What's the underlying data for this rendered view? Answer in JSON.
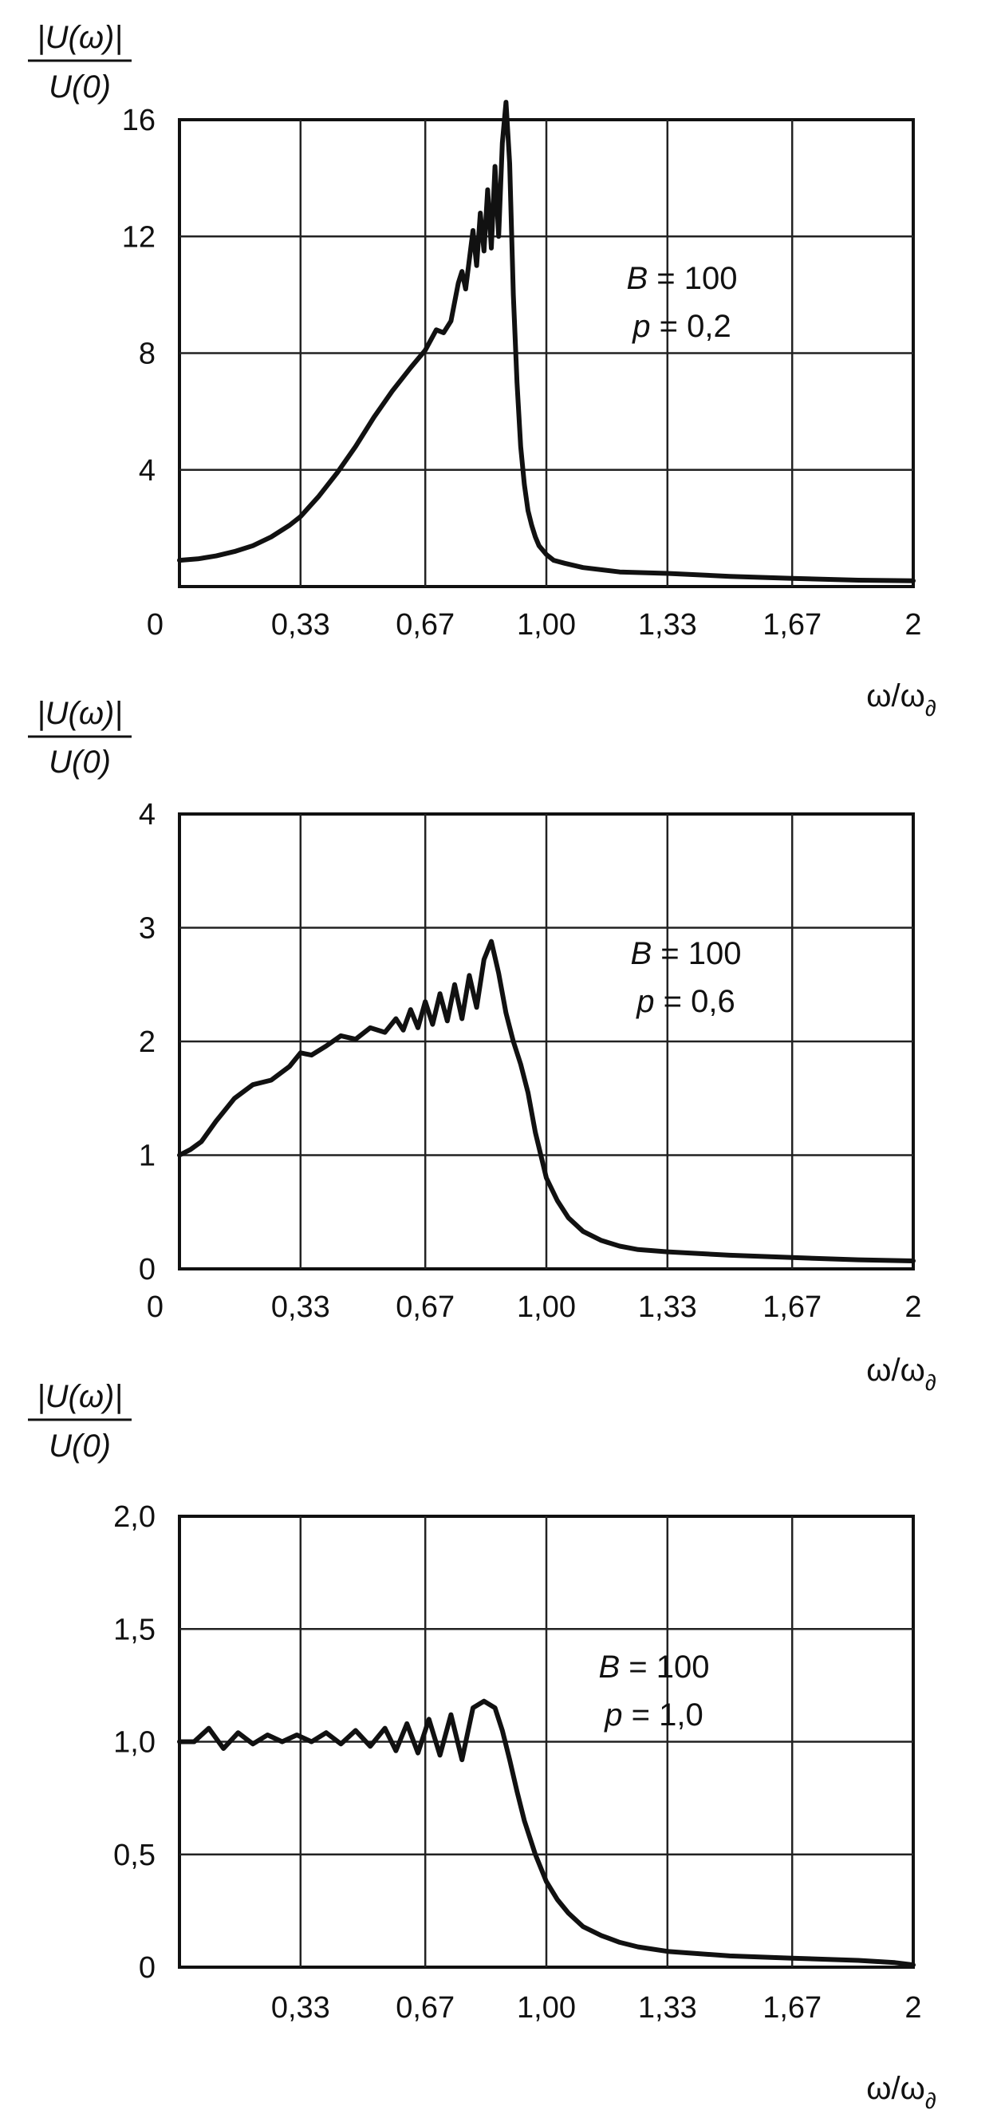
{
  "chart_data": [
    {
      "type": "line",
      "ylabel_num": "|U(ω)|",
      "ylabel_den": "U(0)",
      "xlabel": "ω/ω",
      "xlabel_sub": "∂",
      "xlim": [
        0,
        2
      ],
      "ylim": [
        0,
        16
      ],
      "x_ticks": [
        0,
        0.33,
        0.67,
        1.0,
        1.33,
        1.67,
        2
      ],
      "x_tick_labels": [
        "0",
        "0,33",
        "0,67",
        "1,00",
        "1,33",
        "1,67",
        "2"
      ],
      "y_ticks": [
        4,
        8,
        12,
        16
      ],
      "y_tick_labels": [
        "4",
        "8",
        "12",
        "16"
      ],
      "grid": true,
      "annotation": {
        "b_label": "B",
        "b_value": " = 100",
        "p_label": "p",
        "p_value": " = 0,2"
      },
      "series": [
        {
          "x": [
            0,
            0.05,
            0.1,
            0.15,
            0.2,
            0.25,
            0.3,
            0.33,
            0.38,
            0.43,
            0.48,
            0.53,
            0.58,
            0.63,
            0.67,
            0.7,
            0.72,
            0.74,
            0.76,
            0.77,
            0.78,
            0.79,
            0.8,
            0.81,
            0.82,
            0.83,
            0.84,
            0.85,
            0.86,
            0.87,
            0.88,
            0.89,
            0.9,
            0.91,
            0.92,
            0.93,
            0.94,
            0.95,
            0.96,
            0.97,
            0.98,
            1.0,
            1.02,
            1.05,
            1.1,
            1.2,
            1.33,
            1.5,
            1.67,
            1.85,
            2.0
          ],
          "y": [
            0.9,
            0.95,
            1.05,
            1.2,
            1.4,
            1.7,
            2.1,
            2.4,
            3.1,
            3.9,
            4.8,
            5.8,
            6.7,
            7.5,
            8.1,
            8.8,
            8.7,
            9.1,
            10.4,
            10.8,
            10.2,
            11.2,
            12.2,
            11.0,
            12.8,
            11.5,
            13.6,
            11.6,
            14.4,
            12.0,
            15.2,
            16.6,
            14.5,
            10.0,
            7.0,
            4.8,
            3.5,
            2.6,
            2.1,
            1.7,
            1.4,
            1.1,
            0.9,
            0.8,
            0.65,
            0.5,
            0.45,
            0.35,
            0.28,
            0.22,
            0.2
          ]
        }
      ]
    },
    {
      "type": "line",
      "ylabel_num": "|U(ω)|",
      "ylabel_den": "U(0)",
      "xlabel": "ω/ω",
      "xlabel_sub": "∂",
      "xlim": [
        0,
        2
      ],
      "ylim": [
        0,
        4
      ],
      "x_ticks": [
        0,
        0.33,
        0.67,
        1.0,
        1.33,
        1.67,
        2
      ],
      "x_tick_labels": [
        "0",
        "0,33",
        "0,67",
        "1,00",
        "1,33",
        "1,67",
        "2"
      ],
      "y_ticks": [
        0,
        1,
        2,
        3,
        4
      ],
      "y_tick_labels": [
        "0",
        "1",
        "2",
        "3",
        "4"
      ],
      "grid": true,
      "annotation": {
        "b_label": "B",
        "b_value": " = 100",
        "p_label": "p",
        "p_value": " = 0,6"
      },
      "series": [
        {
          "x": [
            0,
            0.03,
            0.06,
            0.1,
            0.15,
            0.2,
            0.25,
            0.3,
            0.33,
            0.36,
            0.4,
            0.44,
            0.48,
            0.52,
            0.56,
            0.59,
            0.61,
            0.63,
            0.65,
            0.67,
            0.69,
            0.71,
            0.73,
            0.75,
            0.77,
            0.79,
            0.81,
            0.83,
            0.85,
            0.87,
            0.89,
            0.91,
            0.93,
            0.95,
            0.97,
            1.0,
            1.03,
            1.06,
            1.1,
            1.15,
            1.2,
            1.25,
            1.33,
            1.5,
            1.67,
            1.85,
            2.0
          ],
          "y": [
            1.0,
            1.05,
            1.12,
            1.3,
            1.5,
            1.62,
            1.66,
            1.78,
            1.9,
            1.88,
            1.96,
            2.05,
            2.02,
            2.12,
            2.08,
            2.2,
            2.1,
            2.28,
            2.12,
            2.35,
            2.15,
            2.42,
            2.18,
            2.5,
            2.2,
            2.58,
            2.3,
            2.72,
            2.88,
            2.6,
            2.25,
            2.0,
            1.8,
            1.55,
            1.2,
            0.8,
            0.6,
            0.45,
            0.33,
            0.25,
            0.2,
            0.17,
            0.15,
            0.12,
            0.1,
            0.08,
            0.07
          ]
        }
      ]
    },
    {
      "type": "line",
      "ylabel_num": "|U(ω)|",
      "ylabel_den": "U(0)",
      "xlabel": "ω/ω",
      "xlabel_sub": "∂",
      "xlim": [
        0,
        2
      ],
      "ylim": [
        0,
        2
      ],
      "x_ticks": [
        0.33,
        0.67,
        1.0,
        1.33,
        1.67,
        2
      ],
      "x_tick_labels": [
        "0,33",
        "0,67",
        "1,00",
        "1,33",
        "1,67",
        "2"
      ],
      "y_ticks": [
        0,
        0.5,
        1.0,
        1.5,
        2.0
      ],
      "y_tick_labels": [
        "0",
        "0,5",
        "1,0",
        "1,5",
        "2,0"
      ],
      "grid": true,
      "annotation": {
        "b_label": "B",
        "b_value": " = 100",
        "p_label": "p",
        "p_value": " = 1,0"
      },
      "series": [
        {
          "x": [
            0,
            0.04,
            0.08,
            0.12,
            0.16,
            0.2,
            0.24,
            0.28,
            0.32,
            0.36,
            0.4,
            0.44,
            0.48,
            0.52,
            0.56,
            0.59,
            0.62,
            0.65,
            0.68,
            0.71,
            0.74,
            0.77,
            0.8,
            0.83,
            0.86,
            0.88,
            0.9,
            0.92,
            0.94,
            0.97,
            1.0,
            1.03,
            1.06,
            1.1,
            1.15,
            1.2,
            1.25,
            1.33,
            1.5,
            1.67,
            1.85,
            1.95,
            2.0
          ],
          "y": [
            1.0,
            1.0,
            1.06,
            0.97,
            1.04,
            0.99,
            1.03,
            1.0,
            1.03,
            1.0,
            1.04,
            0.99,
            1.05,
            0.98,
            1.06,
            0.96,
            1.08,
            0.95,
            1.1,
            0.94,
            1.12,
            0.92,
            1.15,
            1.18,
            1.15,
            1.05,
            0.92,
            0.78,
            0.65,
            0.5,
            0.38,
            0.3,
            0.24,
            0.18,
            0.14,
            0.11,
            0.09,
            0.07,
            0.05,
            0.04,
            0.03,
            0.02,
            0.01
          ]
        }
      ]
    }
  ]
}
